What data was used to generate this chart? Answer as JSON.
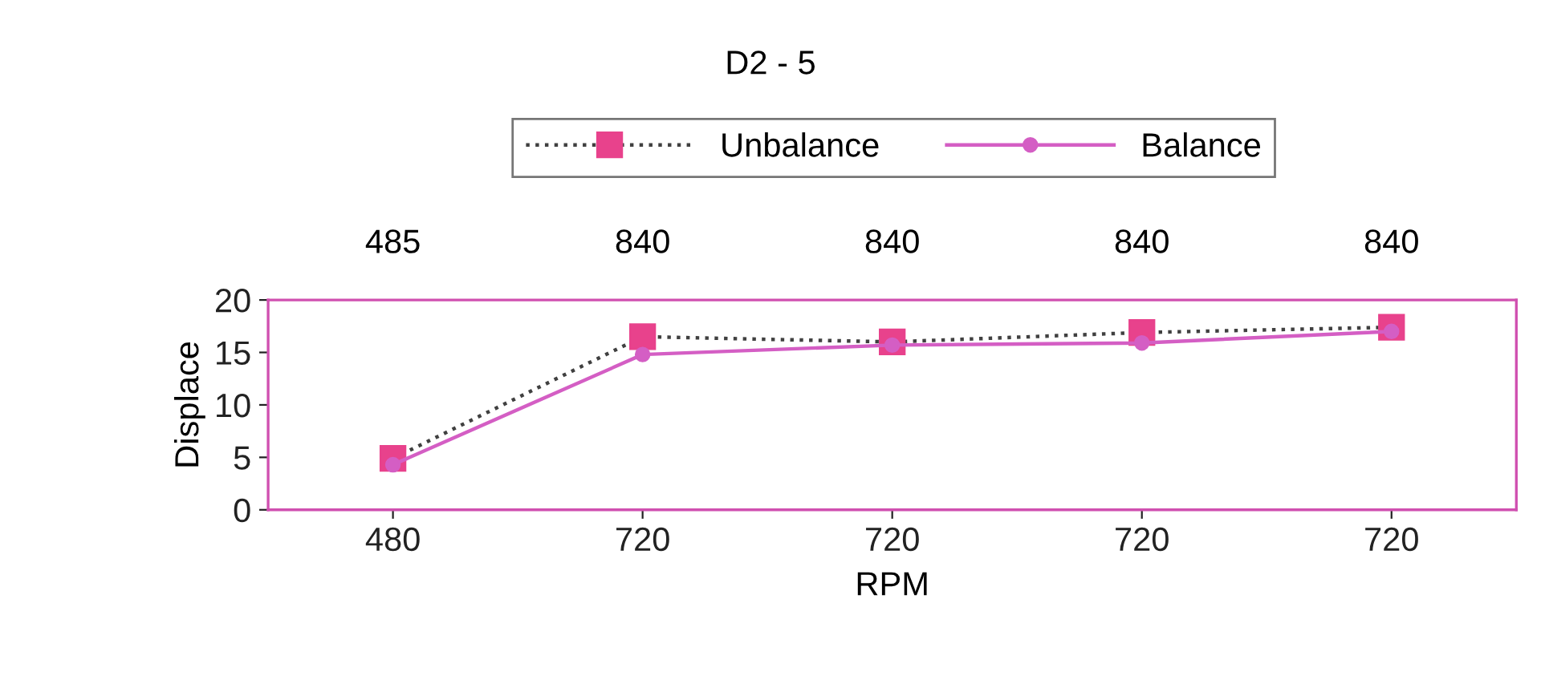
{
  "chart_data": {
    "type": "line",
    "title": "D2 - 5",
    "xlabel": "RPM",
    "ylabel": "Displace",
    "categories": [
      "480",
      "720",
      "720",
      "720",
      "720"
    ],
    "annotations": [
      "485",
      "840",
      "840",
      "840",
      "840"
    ],
    "ylim": [
      0,
      20
    ],
    "yticks": [
      0,
      5,
      10,
      15,
      20
    ],
    "grid": false,
    "legend": "top",
    "series": [
      {
        "name": "Unbalance",
        "color": "#e8428c",
        "values": [
          4.9,
          16.5,
          16.0,
          16.9,
          17.4
        ],
        "marker": "square",
        "line_style": "dotted"
      },
      {
        "name": "Balance",
        "color": "#d45ec4",
        "values": [
          4.3,
          14.8,
          15.7,
          15.9,
          17.0
        ],
        "marker": "circle",
        "line_style": "solid"
      }
    ]
  }
}
